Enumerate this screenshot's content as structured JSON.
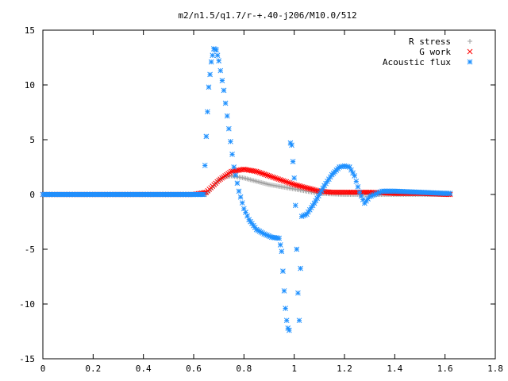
{
  "chart_data": {
    "type": "scatter",
    "title": "m2/n1.5/q1.7/r-+.40-j206/M10.0/512",
    "xlabel": "",
    "ylabel": "",
    "xlim": [
      0,
      1.8
    ],
    "ylim": [
      -15,
      15
    ],
    "x_ticks": [
      "0",
      "0.2",
      "0.4",
      "0.6",
      "0.8",
      "1",
      "1.2",
      "1.4",
      "1.6",
      "1.8"
    ],
    "y_ticks": [
      "-15",
      "-10",
      "-5",
      "0",
      "5",
      "10",
      "15"
    ],
    "grid": false,
    "legend_position": "top-right",
    "series": [
      {
        "name": "R stress",
        "marker": "+",
        "color": "#a0a0a0",
        "x": [
          0,
          0.2,
          0.4,
          0.6,
          0.65,
          0.68,
          0.7,
          0.72,
          0.75,
          0.8,
          0.85,
          0.9,
          0.95,
          1.0,
          1.05,
          1.1,
          1.2,
          1.3,
          1.4,
          1.5,
          1.62
        ],
        "y": [
          0,
          0,
          0,
          0,
          0,
          0.8,
          1.3,
          1.6,
          1.7,
          1.5,
          1.2,
          0.9,
          0.7,
          0.5,
          0.3,
          0.1,
          0.0,
          0.0,
          0.0,
          0.0,
          0.0
        ]
      },
      {
        "name": "G work",
        "marker": "x",
        "color": "#ff0000",
        "x": [
          0,
          0.2,
          0.4,
          0.6,
          0.65,
          0.7,
          0.75,
          0.8,
          0.85,
          0.9,
          0.95,
          1.0,
          1.05,
          1.1,
          1.15,
          1.2,
          1.3,
          1.4,
          1.5,
          1.62
        ],
        "y": [
          0,
          0,
          0,
          0,
          0.2,
          1.3,
          2.1,
          2.3,
          2.1,
          1.7,
          1.3,
          0.9,
          0.6,
          0.3,
          0.2,
          0.2,
          0.2,
          0.1,
          0.1,
          0.0
        ]
      },
      {
        "name": "Acoustic flux",
        "marker": "*",
        "color": "#1e90ff",
        "x": [
          0,
          0.2,
          0.4,
          0.6,
          0.64,
          0.65,
          0.66,
          0.67,
          0.68,
          0.69,
          0.7,
          0.72,
          0.74,
          0.76,
          0.78,
          0.8,
          0.82,
          0.85,
          0.88,
          0.91,
          0.94,
          0.95,
          0.955,
          0.96,
          0.965,
          0.97,
          0.975,
          0.98,
          0.985,
          0.99,
          0.995,
          1.0,
          1.005,
          1.01,
          1.015,
          1.02,
          1.03,
          1.05,
          1.08,
          1.12,
          1.15,
          1.18,
          1.2,
          1.22,
          1.24,
          1.26,
          1.28,
          1.3,
          1.35,
          1.4,
          1.5,
          1.6,
          1.62
        ],
        "y": [
          0,
          0,
          0,
          0,
          0,
          5.3,
          9.8,
          12.1,
          13.3,
          13.2,
          12.2,
          9.5,
          6.0,
          2.5,
          0.3,
          -1.3,
          -2.3,
          -3.2,
          -3.6,
          -3.9,
          -4.0,
          -5.2,
          -7.0,
          -8.8,
          -10.4,
          -11.5,
          -12.2,
          -12.4,
          4.7,
          4.5,
          3.0,
          1.5,
          -1.0,
          -5.0,
          -9.0,
          -11.5,
          -2.0,
          -1.8,
          -0.8,
          0.8,
          1.8,
          2.5,
          2.6,
          2.5,
          1.7,
          0.2,
          -0.8,
          -0.2,
          0.3,
          0.3,
          0.2,
          0.1,
          0.1
        ]
      }
    ]
  }
}
